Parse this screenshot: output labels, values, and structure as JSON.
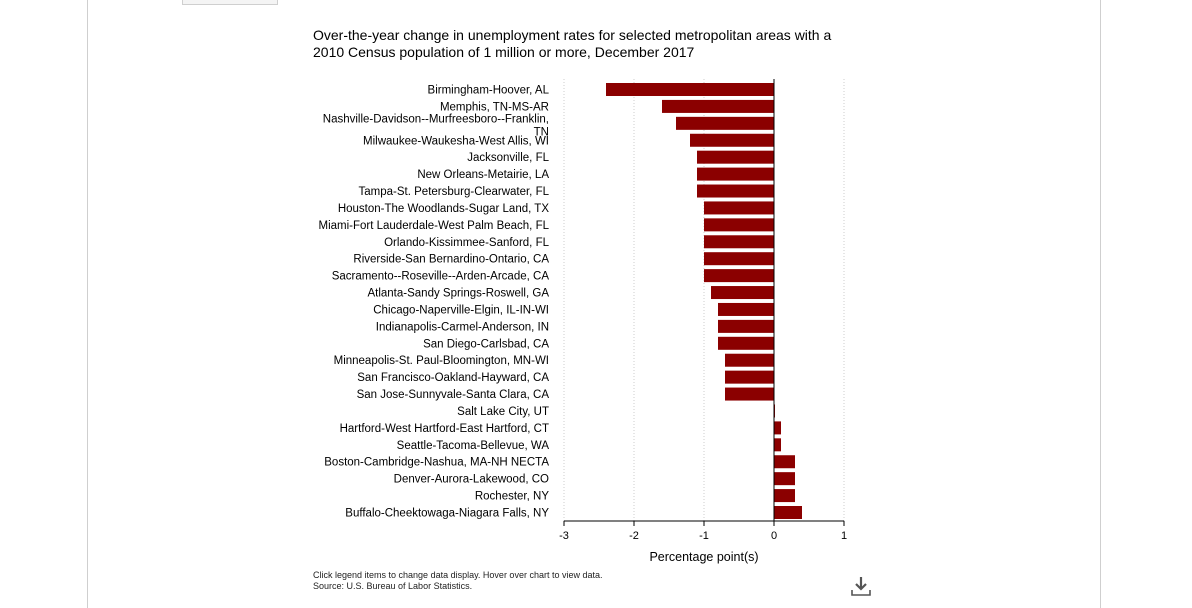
{
  "chart_data": {
    "type": "bar",
    "orientation": "horizontal",
    "title": "Over-the-year change in unemployment rates for selected metropolitan areas with a 2010 Census population of 1 million or more, December 2017",
    "xlabel": "Percentage point(s)",
    "ylabel": "",
    "xlim": [
      -3,
      1
    ],
    "xticks": [
      "-3",
      "-2",
      "-1",
      "0",
      "1"
    ],
    "grid": "vertical dotted",
    "bar_color": "#8b0000",
    "categories": [
      "Birmingham-Hoover, AL",
      "Memphis, TN-MS-AR",
      "Nashville-Davidson--Murfreesboro--Franklin, TN",
      "Milwaukee-Waukesha-West Allis, WI",
      "Jacksonville, FL",
      "New Orleans-Metairie, LA",
      "Tampa-St. Petersburg-Clearwater, FL",
      "Houston-The Woodlands-Sugar Land, TX",
      "Miami-Fort Lauderdale-West Palm Beach, FL",
      "Orlando-Kissimmee-Sanford, FL",
      "Riverside-San Bernardino-Ontario, CA",
      "Sacramento--Roseville--Arden-Arcade, CA",
      "Atlanta-Sandy Springs-Roswell, GA",
      "Chicago-Naperville-Elgin, IL-IN-WI",
      "Indianapolis-Carmel-Anderson, IN",
      "San Diego-Carlsbad, CA",
      "Minneapolis-St. Paul-Bloomington, MN-WI",
      "San Francisco-Oakland-Hayward, CA",
      "San Jose-Sunnyvale-Santa Clara, CA",
      "Salt Lake City, UT",
      "Hartford-West Hartford-East Hartford, CT",
      "Seattle-Tacoma-Bellevue, WA",
      "Boston-Cambridge-Nashua, MA-NH NECTA",
      "Denver-Aurora-Lakewood, CO",
      "Rochester, NY",
      "Buffalo-Cheektowaga-Niagara Falls, NY"
    ],
    "values": [
      -2.4,
      -1.6,
      -1.4,
      -1.2,
      -1.1,
      -1.1,
      -1.1,
      -1.0,
      -1.0,
      -1.0,
      -1.0,
      -1.0,
      -0.9,
      -0.8,
      -0.8,
      -0.8,
      -0.7,
      -0.7,
      -0.7,
      0.0,
      0.1,
      0.1,
      0.3,
      0.3,
      0.3,
      0.4
    ]
  },
  "footer": {
    "note": "Click legend items to change data display. Hover over chart to view data.",
    "source": "Source: U.S. Bureau of Labor Statistics."
  },
  "icons": {
    "download": "download-icon"
  }
}
